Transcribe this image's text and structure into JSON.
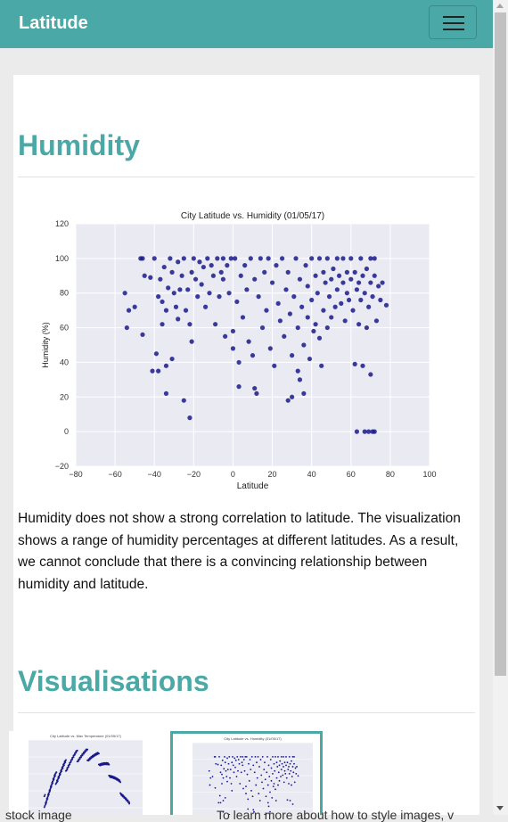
{
  "navbar": {
    "brand": "Latitude",
    "toggler_label": "menu"
  },
  "main": {
    "section_title": "Humidity",
    "description": "Humidity does not show a strong correlation to latitude. The visualization shows a range of humidity percentages at different latitudes. As a result, we cannot conclude that there is a convincing relationship between humidity and latitude.",
    "visualisations_title": "Visualisations"
  },
  "footer_fragments": {
    "left": "stock image",
    "right": "To learn more about how to style images, v"
  },
  "thumbnails": [
    {
      "name": "max-temp-thumbnail",
      "title": "City Latitude vs. Max Temperature (01/05/17)"
    },
    {
      "name": "humidity-thumbnail",
      "title": "City Latitude vs. Humidity (01/05/17)"
    }
  ],
  "colors": {
    "accent": "#4aa9a6",
    "plot_bg": "#eaeaf2",
    "point": "#1a1a8c"
  },
  "chart_data": {
    "type": "scatter",
    "title": "City Latitude vs. Humidity (01/05/17)",
    "xlabel": "Latitude",
    "ylabel": "Humidity (%)",
    "xlim": [
      -80,
      100
    ],
    "ylim": [
      -20,
      120
    ],
    "xticks": [
      -80,
      -60,
      -40,
      -20,
      0,
      20,
      40,
      60,
      80,
      100
    ],
    "yticks": [
      -20,
      0,
      20,
      40,
      60,
      80,
      100,
      120
    ],
    "grid": true,
    "points": [
      [
        -55,
        80
      ],
      [
        -53,
        70
      ],
      [
        -54,
        60
      ],
      [
        -50,
        72
      ],
      [
        -47,
        100
      ],
      [
        -46,
        100
      ],
      [
        -46,
        56
      ],
      [
        -45,
        90
      ],
      [
        -42,
        89
      ],
      [
        -40,
        100
      ],
      [
        -41,
        35
      ],
      [
        -38,
        35
      ],
      [
        -39,
        45
      ],
      [
        -38,
        78
      ],
      [
        -37,
        88
      ],
      [
        -36,
        62
      ],
      [
        -36,
        75
      ],
      [
        -35,
        95
      ],
      [
        -34,
        70
      ],
      [
        -33,
        83
      ],
      [
        -34,
        38
      ],
      [
        -34,
        22
      ],
      [
        -32,
        100
      ],
      [
        -31,
        92
      ],
      [
        -31,
        42
      ],
      [
        -30,
        80
      ],
      [
        -29,
        72
      ],
      [
        -28,
        65
      ],
      [
        -28,
        98
      ],
      [
        -27,
        82
      ],
      [
        -26,
        90
      ],
      [
        -25,
        100
      ],
      [
        -25,
        18
      ],
      [
        -24,
        70
      ],
      [
        -23,
        82
      ],
      [
        -22,
        62
      ],
      [
        -22,
        8
      ],
      [
        -21,
        92
      ],
      [
        -21,
        52
      ],
      [
        -20,
        100
      ],
      [
        -19,
        88
      ],
      [
        -18,
        78
      ],
      [
        -17,
        98
      ],
      [
        -16,
        85
      ],
      [
        -15,
        95
      ],
      [
        -14,
        72
      ],
      [
        -13,
        100
      ],
      [
        -12,
        80
      ],
      [
        -11,
        96
      ],
      [
        -10,
        90
      ],
      [
        -9,
        62
      ],
      [
        -8,
        100
      ],
      [
        -7,
        78
      ],
      [
        -6,
        92
      ],
      [
        -5,
        88
      ],
      [
        -5,
        100
      ],
      [
        -4,
        55
      ],
      [
        -3,
        96
      ],
      [
        -2,
        80
      ],
      [
        -1,
        100
      ],
      [
        0,
        58
      ],
      [
        0,
        48
      ],
      [
        1,
        100
      ],
      [
        2,
        75
      ],
      [
        3,
        40
      ],
      [
        3,
        26
      ],
      [
        4,
        90
      ],
      [
        5,
        66
      ],
      [
        6,
        96
      ],
      [
        7,
        82
      ],
      [
        8,
        52
      ],
      [
        9,
        100
      ],
      [
        10,
        44
      ],
      [
        11,
        88
      ],
      [
        11,
        25
      ],
      [
        12,
        22
      ],
      [
        13,
        78
      ],
      [
        14,
        100
      ],
      [
        15,
        60
      ],
      [
        16,
        92
      ],
      [
        17,
        70
      ],
      [
        18,
        100
      ],
      [
        19,
        48
      ],
      [
        20,
        86
      ],
      [
        21,
        38
      ],
      [
        22,
        96
      ],
      [
        23,
        74
      ],
      [
        24,
        64
      ],
      [
        25,
        100
      ],
      [
        26,
        55
      ],
      [
        27,
        82
      ],
      [
        28,
        92
      ],
      [
        28,
        18
      ],
      [
        29,
        68
      ],
      [
        30,
        44
      ],
      [
        30,
        20
      ],
      [
        31,
        78
      ],
      [
        32,
        100
      ],
      [
        33,
        60
      ],
      [
        33,
        35
      ],
      [
        34,
        88
      ],
      [
        34,
        30
      ],
      [
        35,
        72
      ],
      [
        36,
        50
      ],
      [
        36,
        22
      ],
      [
        37,
        96
      ],
      [
        38,
        66
      ],
      [
        38,
        84
      ],
      [
        39,
        42
      ],
      [
        40,
        76
      ],
      [
        40,
        100
      ],
      [
        41,
        58
      ],
      [
        42,
        90
      ],
      [
        42,
        62
      ],
      [
        43,
        80
      ],
      [
        44,
        54
      ],
      [
        44,
        100
      ],
      [
        45,
        38
      ],
      [
        46,
        92
      ],
      [
        46,
        70
      ],
      [
        47,
        86
      ],
      [
        48,
        60
      ],
      [
        48,
        100
      ],
      [
        49,
        78
      ],
      [
        50,
        88
      ],
      [
        50,
        66
      ],
      [
        51,
        94
      ],
      [
        52,
        72
      ],
      [
        53,
        82
      ],
      [
        53,
        100
      ],
      [
        54,
        90
      ],
      [
        55,
        74
      ],
      [
        56,
        86
      ],
      [
        56,
        100
      ],
      [
        57,
        64
      ],
      [
        58,
        80
      ],
      [
        58,
        92
      ],
      [
        59,
        76
      ],
      [
        60,
        88
      ],
      [
        60,
        100
      ],
      [
        61,
        70
      ],
      [
        62,
        92
      ],
      [
        62,
        39
      ],
      [
        63,
        82
      ],
      [
        63,
        0
      ],
      [
        64,
        86
      ],
      [
        64,
        62
      ],
      [
        65,
        100
      ],
      [
        65,
        76
      ],
      [
        66,
        90
      ],
      [
        66,
        38
      ],
      [
        67,
        80
      ],
      [
        67,
        0
      ],
      [
        68,
        94
      ],
      [
        68,
        60
      ],
      [
        69,
        72
      ],
      [
        69,
        0
      ],
      [
        70,
        100
      ],
      [
        70,
        86
      ],
      [
        70,
        33
      ],
      [
        71,
        78
      ],
      [
        71,
        0
      ],
      [
        72,
        90
      ],
      [
        72,
        0
      ],
      [
        73,
        64
      ],
      [
        74,
        84
      ],
      [
        75,
        76
      ],
      [
        76,
        86
      ],
      [
        78,
        73
      ],
      [
        72,
        100
      ]
    ]
  }
}
